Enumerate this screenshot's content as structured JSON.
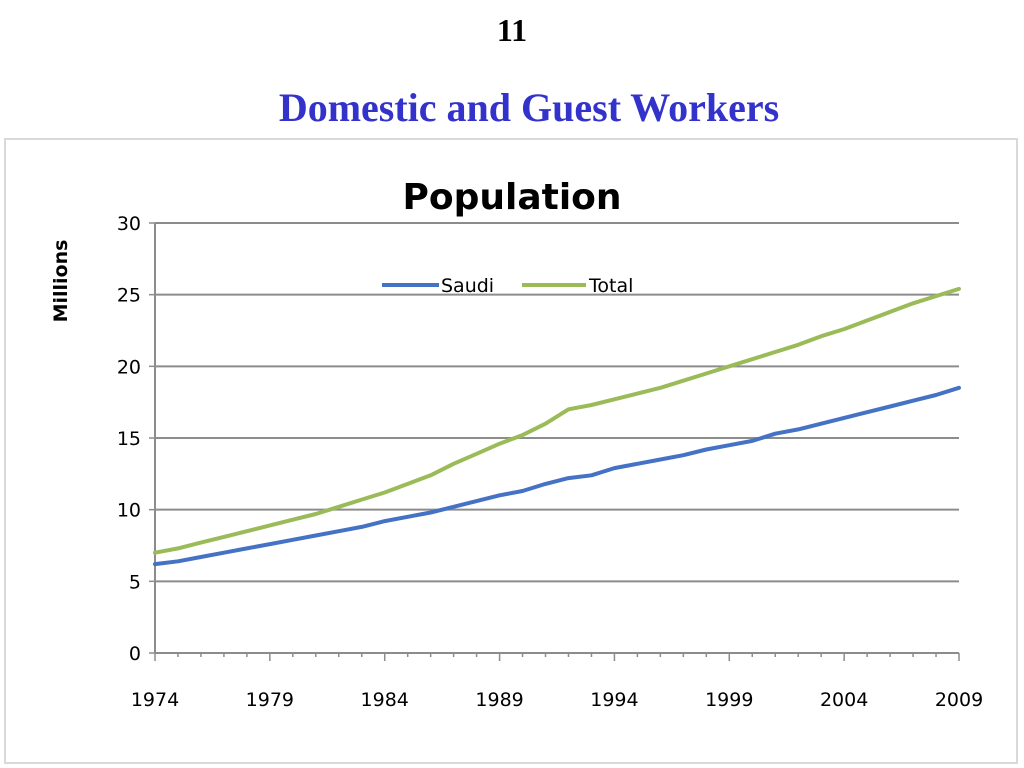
{
  "slide": {
    "number": "11",
    "title": "Domestic and Guest Workers"
  },
  "chart_data": {
    "type": "line",
    "title": "Population",
    "xlabel": "",
    "ylabel": "Millions",
    "xlim": [
      1974,
      2009
    ],
    "ylim": [
      0,
      30
    ],
    "x_ticks": [
      "1974",
      "1979",
      "1984",
      "1989",
      "1994",
      "1999",
      "2004",
      "2009"
    ],
    "y_ticks": [
      "0",
      "5",
      "10",
      "15",
      "20",
      "25",
      "30"
    ],
    "grid": true,
    "legend_position": "top-center",
    "x": [
      1974,
      1975,
      1976,
      1977,
      1978,
      1979,
      1980,
      1981,
      1982,
      1983,
      1984,
      1985,
      1986,
      1987,
      1988,
      1989,
      1990,
      1991,
      1992,
      1993,
      1994,
      1995,
      1996,
      1997,
      1998,
      1999,
      2000,
      2001,
      2002,
      2003,
      2004,
      2005,
      2006,
      2007,
      2008,
      2009
    ],
    "series": [
      {
        "name": "Saudi",
        "color": "#4472c4",
        "values": [
          6.2,
          6.4,
          6.7,
          7.0,
          7.3,
          7.6,
          7.9,
          8.2,
          8.5,
          8.8,
          9.2,
          9.5,
          9.8,
          10.2,
          10.6,
          11.0,
          11.3,
          11.8,
          12.2,
          12.4,
          12.9,
          13.2,
          13.5,
          13.8,
          14.2,
          14.5,
          14.8,
          15.3,
          15.6,
          16.0,
          16.4,
          16.8,
          17.2,
          17.6,
          18.0,
          18.5
        ]
      },
      {
        "name": "Total",
        "color": "#9bbb59",
        "values": [
          7.0,
          7.3,
          7.7,
          8.1,
          8.5,
          8.9,
          9.3,
          9.7,
          10.2,
          10.7,
          11.2,
          11.8,
          12.4,
          13.2,
          13.9,
          14.6,
          15.2,
          16.0,
          17.0,
          17.3,
          17.7,
          18.1,
          18.5,
          19.0,
          19.5,
          20.0,
          20.5,
          21.0,
          21.5,
          22.1,
          22.6,
          23.2,
          23.8,
          24.4,
          24.9,
          25.4
        ]
      }
    ]
  }
}
